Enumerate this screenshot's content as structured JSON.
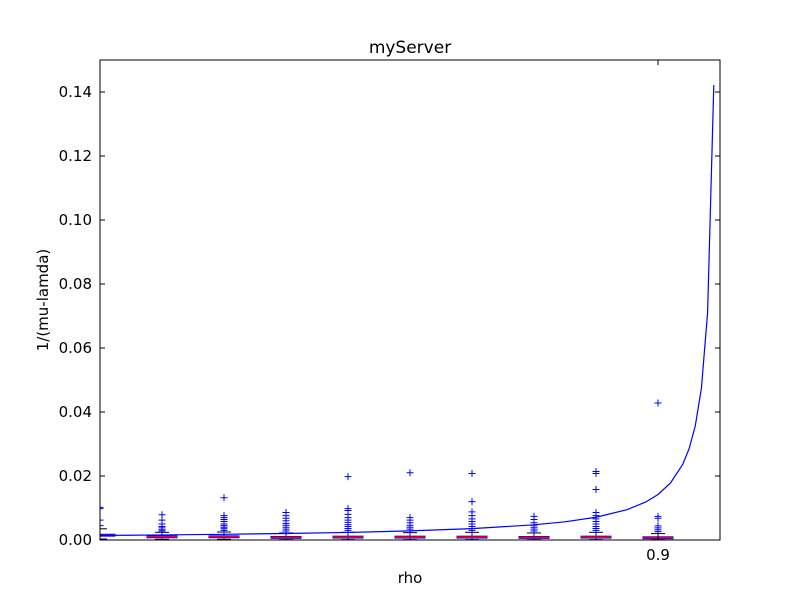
{
  "chart_data": {
    "type": "box",
    "title": "myServer",
    "xlabel": "rho",
    "ylabel": "1/(mu-lamda)",
    "ylim": [
      0,
      0.15
    ],
    "xlim": [
      0,
      1
    ],
    "y_ticks": [
      0.0,
      0.02,
      0.04,
      0.06,
      0.08,
      0.1,
      0.12,
      0.14
    ],
    "y_tick_labels": [
      "0.00",
      "0.02",
      "0.04",
      "0.06",
      "0.08",
      "0.10",
      "0.12",
      "0.14"
    ],
    "x_ticks": [
      0.9
    ],
    "x_tick_labels": [
      "0.9"
    ],
    "grid": false,
    "colors": {
      "curve": "#0000ff",
      "flier": "#0000ff",
      "box": "#0000ff",
      "median": "#ff0000"
    },
    "boxes": [
      {
        "x": 0.0,
        "q1": 0.0012,
        "median": 0.0015,
        "q3": 0.0018,
        "whisker_low": 0.0003,
        "whisker_high": 0.0035,
        "fliers": [
          0.0045,
          0.0062,
          0.0098,
          0.0102
        ]
      },
      {
        "x": 0.1,
        "q1": 0.0007,
        "median": 0.001,
        "q3": 0.0013,
        "whisker_low": 0.0002,
        "whisker_high": 0.0024,
        "fliers": [
          0.0028,
          0.0032,
          0.0038,
          0.0042,
          0.005,
          0.0062,
          0.0079
        ]
      },
      {
        "x": 0.2,
        "q1": 0.0007,
        "median": 0.001,
        "q3": 0.0013,
        "whisker_low": 0.0002,
        "whisker_high": 0.0025,
        "fliers": [
          0.003,
          0.0035,
          0.004,
          0.0045,
          0.005,
          0.0058,
          0.0064,
          0.007,
          0.0076,
          0.0132
        ]
      },
      {
        "x": 0.3,
        "q1": 0.0005,
        "median": 0.0008,
        "q3": 0.0011,
        "whisker_low": 0.0001,
        "whisker_high": 0.0022,
        "fliers": [
          0.0028,
          0.0034,
          0.004,
          0.0046,
          0.0052,
          0.006,
          0.0068,
          0.0076,
          0.0086
        ]
      },
      {
        "x": 0.4,
        "q1": 0.0006,
        "median": 0.0009,
        "q3": 0.0012,
        "whisker_low": 0.0001,
        "whisker_high": 0.0024,
        "fliers": [
          0.003,
          0.0036,
          0.0042,
          0.0048,
          0.0055,
          0.0062,
          0.007,
          0.008,
          0.0092,
          0.0098,
          0.0198
        ]
      },
      {
        "x": 0.5,
        "q1": 0.0006,
        "median": 0.0009,
        "q3": 0.0012,
        "whisker_low": 0.0001,
        "whisker_high": 0.0023,
        "fliers": [
          0.0028,
          0.0034,
          0.004,
          0.0046,
          0.0054,
          0.0062,
          0.007,
          0.021
        ]
      },
      {
        "x": 0.6,
        "q1": 0.0006,
        "median": 0.0009,
        "q3": 0.0012,
        "whisker_low": 0.0001,
        "whisker_high": 0.0024,
        "fliers": [
          0.003,
          0.0036,
          0.0042,
          0.005,
          0.0058,
          0.0066,
          0.0076,
          0.0088,
          0.012,
          0.0208
        ]
      },
      {
        "x": 0.7,
        "q1": 0.0005,
        "median": 0.0008,
        "q3": 0.0011,
        "whisker_low": 0.0001,
        "whisker_high": 0.0022,
        "fliers": [
          0.0028,
          0.0034,
          0.004,
          0.0046,
          0.0054,
          0.0064,
          0.0074
        ]
      },
      {
        "x": 0.8,
        "q1": 0.0006,
        "median": 0.0009,
        "q3": 0.0012,
        "whisker_low": 0.0001,
        "whisker_high": 0.0024,
        "fliers": [
          0.003,
          0.0036,
          0.0042,
          0.005,
          0.0058,
          0.0066,
          0.0076,
          0.0086,
          0.0158,
          0.0208,
          0.0214
        ]
      },
      {
        "x": 0.9,
        "q1": 0.0004,
        "median": 0.0007,
        "q3": 0.001,
        "whisker_low": 0.0001,
        "whisker_high": 0.002,
        "fliers": [
          0.0026,
          0.0032,
          0.0038,
          0.0044,
          0.0068,
          0.0074,
          0.0428
        ]
      }
    ],
    "series": [
      {
        "type": "line",
        "x": [
          0.0,
          0.1,
          0.2,
          0.3,
          0.4,
          0.5,
          0.6,
          0.7,
          0.75,
          0.8,
          0.85,
          0.88,
          0.9,
          0.92,
          0.94,
          0.95,
          0.96,
          0.97,
          0.98,
          0.99
        ],
        "y": [
          0.00142,
          0.00158,
          0.00178,
          0.00204,
          0.00237,
          0.00284,
          0.00355,
          0.00474,
          0.00569,
          0.00711,
          0.00948,
          0.01185,
          0.01422,
          0.01778,
          0.0237,
          0.02844,
          0.03555,
          0.0474,
          0.0711,
          0.1422
        ]
      }
    ]
  }
}
